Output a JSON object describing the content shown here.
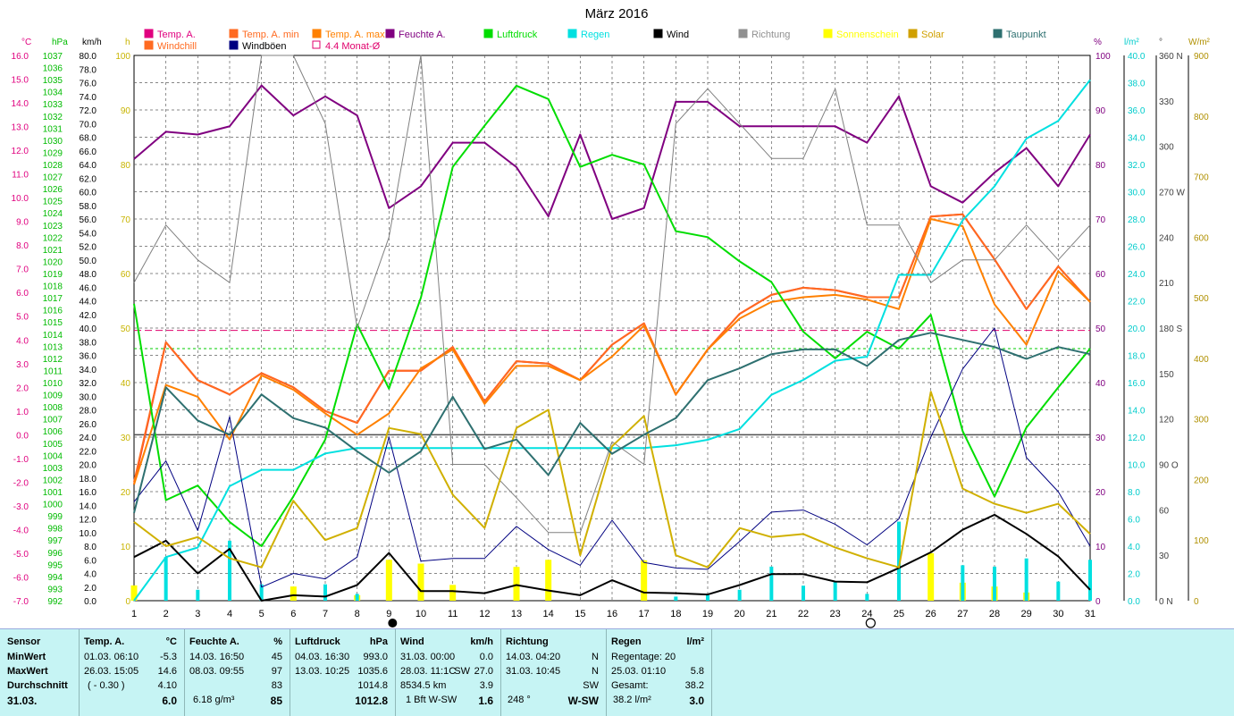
{
  "chart_data": {
    "type": "line",
    "title": "März 2016",
    "x": [
      1,
      2,
      3,
      4,
      5,
      6,
      7,
      8,
      9,
      10,
      11,
      12,
      13,
      14,
      15,
      16,
      17,
      18,
      19,
      20,
      21,
      22,
      23,
      24,
      25,
      26,
      27,
      28,
      29,
      30,
      31
    ],
    "xlim": [
      1,
      31
    ],
    "grid": true,
    "axes": {
      "temp": {
        "label": "°C",
        "color": "#e0007f",
        "min": -7,
        "max": 16,
        "ticks": [
          "16.0",
          "15.0",
          "14.0",
          "13.0",
          "12.0",
          "11.0",
          "10.0",
          "9.0",
          "8.0",
          "7.0",
          "6.0",
          "5.0",
          "4.0",
          "3.0",
          "2.0",
          "1.0",
          "0.0",
          "-1.0",
          "-2.0",
          "-3.0",
          "-4.0",
          "-5.0",
          "-6.0",
          "-7.0"
        ]
      },
      "press": {
        "label": "hPa",
        "color": "#00bb00",
        "min": 992,
        "max": 1037,
        "ticks": [
          "1037",
          "1036",
          "1035",
          "1034",
          "1033",
          "1032",
          "1031",
          "1030",
          "1029",
          "1028",
          "1027",
          "1026",
          "1025",
          "1024",
          "1023",
          "1022",
          "1021",
          "1020",
          "1019",
          "1018",
          "1017",
          "1016",
          "1015",
          "1014",
          "1013",
          "1012",
          "1011",
          "1010",
          "1009",
          "1008",
          "1007",
          "1006",
          "1005",
          "1004",
          "1003",
          "1002",
          "1001",
          "1000",
          "999",
          "998",
          "997",
          "996",
          "995",
          "994",
          "993",
          "992"
        ]
      },
      "wind": {
        "label": "km/h",
        "color": "#000000",
        "min": 0,
        "max": 80,
        "ticks": [
          "80.0",
          "78.0",
          "76.0",
          "74.0",
          "72.0",
          "70.0",
          "68.0",
          "66.0",
          "64.0",
          "62.0",
          "60.0",
          "58.0",
          "56.0",
          "54.0",
          "52.0",
          "50.0",
          "48.0",
          "46.0",
          "44.0",
          "42.0",
          "40.0",
          "38.0",
          "36.0",
          "34.0",
          "32.0",
          "30.0",
          "28.0",
          "26.0",
          "24.0",
          "22.0",
          "20.0",
          "18.0",
          "16.0",
          "14.0",
          "12.0",
          "10.0",
          "8.0",
          "6.0",
          "4.0",
          "2.0",
          "0.0"
        ]
      },
      "sun": {
        "label": "h",
        "color": "#c8b400",
        "min": 0,
        "max": 100,
        "ticks": [
          "100",
          "90",
          "80",
          "70",
          "60",
          "50",
          "40",
          "30",
          "20",
          "10",
          "0"
        ]
      },
      "hum": {
        "label": "%",
        "color": "#800080",
        "min": 0,
        "max": 100,
        "ticks": [
          "100",
          "90",
          "80",
          "70",
          "60",
          "50",
          "40",
          "30",
          "20",
          "10",
          "0"
        ]
      },
      "rain": {
        "label": "l/m²",
        "color": "#00cccc",
        "min": 0,
        "max": 40,
        "ticks": [
          "40.0",
          "38.0",
          "36.0",
          "34.0",
          "32.0",
          "30.0",
          "28.0",
          "26.0",
          "24.0",
          "22.0",
          "20.0",
          "18.0",
          "16.0",
          "14.0",
          "12.0",
          "10.0",
          "8.0",
          "6.0",
          "4.0",
          "2.0",
          "0.0"
        ]
      },
      "dir": {
        "label": "°",
        "color": "#404040",
        "min": 0,
        "max": 360,
        "ticks": [
          "360 N",
          "330",
          "300",
          "270 W",
          "240",
          "210",
          "180 S",
          "150",
          "120",
          "90 O",
          "60",
          "30",
          "0   N"
        ]
      },
      "solar": {
        "label": "W/m²",
        "color": "#b09000",
        "min": 0,
        "max": 900,
        "ticks": [
          "900",
          "800",
          "700",
          "600",
          "500",
          "400",
          "300",
          "200",
          "100",
          "0"
        ]
      }
    },
    "series": [
      {
        "name": "Temp. A.",
        "axis": "temp",
        "color": "#ff2020",
        "width": 2,
        "values": [
          -2.1,
          3.9,
          2.3,
          1.7,
          2.6,
          2.0,
          1.0,
          0.5,
          2.7,
          2.7,
          3.7,
          1.4,
          3.1,
          3.0,
          2.3,
          3.8,
          4.7,
          1.7,
          3.6,
          5.1,
          5.9,
          6.2,
          6.1,
          5.8,
          5.8,
          9.2,
          9.3,
          7.4,
          5.3,
          7.1,
          5.6
        ]
      },
      {
        "name": "Temp. A. min",
        "axis": "temp",
        "color": "#ff6a20",
        "width": 2,
        "values": [
          -2.0,
          3.9,
          2.3,
          1.7,
          2.6,
          2.0,
          1.0,
          0.5,
          2.7,
          2.7,
          3.7,
          1.4,
          3.1,
          3.0,
          2.3,
          3.8,
          4.7,
          1.7,
          3.6,
          5.1,
          5.9,
          6.2,
          6.1,
          5.8,
          5.8,
          9.2,
          9.3,
          7.4,
          5.3,
          7.1,
          5.6
        ]
      },
      {
        "name": "Temp. A. max",
        "axis": "temp",
        "color": "#ff8000",
        "width": 2,
        "values": [
          -2.1,
          2.1,
          1.6,
          -0.2,
          2.5,
          1.9,
          0.9,
          0.0,
          0.9,
          2.8,
          3.6,
          1.3,
          2.9,
          2.9,
          2.3,
          3.3,
          4.6,
          1.7,
          3.6,
          4.9,
          5.6,
          5.8,
          5.9,
          5.7,
          5.3,
          9.1,
          8.8,
          5.5,
          3.8,
          6.9,
          5.6
        ]
      },
      {
        "name": "Feuchte A.",
        "axis": "hum",
        "color": "#800080",
        "width": 2,
        "values": [
          81,
          86,
          85.5,
          87,
          94.5,
          89,
          92.5,
          89,
          72,
          76,
          84,
          84,
          79.5,
          70.5,
          85.5,
          70,
          72,
          91.5,
          91.5,
          87,
          87,
          87,
          87,
          84,
          92.5,
          76,
          73,
          78.5,
          83,
          76,
          85.5
        ]
      },
      {
        "name": "Luftdruck",
        "axis": "press",
        "color": "#00dd00",
        "width": 2,
        "values": [
          1016.5,
          1000.3,
          1001.5,
          998.5,
          996.5,
          1000.6,
          1005.3,
          1014.8,
          1009.5,
          1017.0,
          1027.8,
          1031.2,
          1034.5,
          1033.4,
          1027.8,
          1028.8,
          1028.0,
          1022.5,
          1022.0,
          1020.0,
          1018.3,
          1014.2,
          1012.0,
          1014.2,
          1012.8,
          1015.6,
          1006.0,
          1000.6,
          1006.3,
          1009.6,
          1012.8
        ]
      },
      {
        "name": "Regen",
        "axis": "rain",
        "color": "#00e0e0",
        "width": 2,
        "values": [
          0,
          3.2,
          3.9,
          8.4,
          9.6,
          9.6,
          10.8,
          11.2,
          11.2,
          11.2,
          11.2,
          11.2,
          11.2,
          11.2,
          11.2,
          11.2,
          11.2,
          11.4,
          11.8,
          12.6,
          15.1,
          16.2,
          17.6,
          17.9,
          23.9,
          23.9,
          27.9,
          30.4,
          33.9,
          35.2,
          38.2
        ]
      },
      {
        "name": "Wind",
        "axis": "wind",
        "color": "#000000",
        "width": 2,
        "values": [
          6.4,
          8.8,
          4.0,
          7.6,
          0.0,
          0.8,
          0.6,
          2.3,
          7.0,
          1.4,
          1.4,
          1.1,
          2.3,
          1.5,
          0.8,
          3.0,
          1.2,
          1.1,
          0.9,
          2.3,
          3.9,
          3.9,
          2.8,
          2.7,
          4.8,
          7.1,
          10.4,
          12.6,
          9.8,
          6.5,
          1.6
        ]
      },
      {
        "name": "Windböen",
        "axis": "wind",
        "color": "#000080",
        "width": 1,
        "values": [
          14.5,
          20.5,
          10.3,
          27.0,
          2.0,
          4.0,
          3.2,
          6.4,
          24.0,
          5.8,
          6.2,
          6.2,
          10.9,
          7.5,
          5.2,
          11.8,
          5.6,
          4.8,
          4.6,
          8.7,
          13.0,
          13.3,
          11.2,
          8.2,
          12.0,
          24.0,
          34.0,
          40.0,
          21.0,
          16.0,
          8.0
        ]
      },
      {
        "name": "Richtung",
        "axis": "dir",
        "color": "#808080",
        "width": 1,
        "values": [
          210,
          248,
          225,
          210,
          362,
          362,
          315,
          180,
          240,
          362,
          90,
          90,
          68,
          45,
          45,
          105,
          90,
          315,
          338,
          315,
          292,
          292,
          338,
          248,
          248,
          210,
          225,
          225,
          248,
          225,
          248
        ]
      },
      {
        "name": "Solar",
        "axis": "solar",
        "color": "#d0b000",
        "width": 2,
        "values": [
          130,
          90,
          105,
          70,
          55,
          165,
          100,
          120,
          285,
          275,
          175,
          120,
          285,
          315,
          75,
          255,
          305,
          75,
          55,
          120,
          105,
          110,
          88,
          70,
          55,
          345,
          185,
          160,
          145,
          160,
          110
        ]
      },
      {
        "name": "Taupunkt",
        "axis": "temp",
        "color": "#2e7070",
        "width": 2,
        "values": [
          -3.3,
          2.0,
          0.6,
          0.0,
          1.7,
          0.7,
          0.3,
          -0.7,
          -1.6,
          -0.7,
          1.6,
          -0.6,
          -0.2,
          -1.7,
          0.5,
          -0.8,
          0.0,
          0.7,
          2.3,
          2.8,
          3.4,
          3.6,
          3.6,
          2.9,
          4.0,
          4.3,
          4.0,
          3.7,
          3.2,
          3.7,
          3.4
        ]
      }
    ],
    "bars": [
      {
        "name": "Sonnenschein",
        "axis": "sun",
        "color": "#ffff00",
        "values": [
          2.8,
          0,
          0,
          0,
          0,
          2.6,
          0,
          1.0,
          7.5,
          6.8,
          2.9,
          0,
          6.2,
          7.5,
          0,
          0,
          7.4,
          0,
          0,
          0,
          0,
          0,
          0,
          0,
          0,
          8.7,
          3.3,
          2.6,
          1.5,
          0,
          0
        ]
      },
      {
        "name": "Regen",
        "axis": "rain",
        "color": "#00e0e0",
        "values": [
          0,
          3.2,
          0.8,
          4.4,
          1.2,
          0,
          1.2,
          0.5,
          0,
          0,
          0,
          0,
          0,
          0,
          0,
          0,
          0,
          0.3,
          0.4,
          0.8,
          2.5,
          1.1,
          1.4,
          0.5,
          5.8,
          0,
          2.6,
          2.5,
          3.1,
          1.4,
          3.0
        ]
      }
    ],
    "reference_lines": [
      {
        "name": "4.4 Monat-Ø",
        "axis": "temp",
        "value": 4.4,
        "color": "#e0006c",
        "dash": "8 4"
      },
      {
        "axis": "press",
        "value": 1012.8,
        "color": "#00cc00",
        "dash": "3 3"
      }
    ],
    "zero_line": {
      "axis": "temp",
      "value": 0,
      "color": "#505050"
    },
    "legend": {
      "row1": [
        {
          "name": "Temp. A.",
          "color": "#e0007f",
          "symbol": "filled"
        },
        {
          "name": "Temp. A. min",
          "color": "#ff6a20",
          "symbol": "filled"
        },
        {
          "name": "Temp. A. max",
          "color": "#ff8000",
          "symbol": "filled"
        },
        {
          "name": "Feuchte A.",
          "color": "#800080",
          "symbol": "filled"
        },
        {
          "name": "Luftdruck",
          "color": "#00dd00",
          "symbol": "filled"
        },
        {
          "name": "Regen",
          "color": "#00e0e0",
          "symbol": "filled"
        },
        {
          "name": "Wind",
          "color": "#000000",
          "symbol": "filled"
        },
        {
          "name": "Richtung",
          "color": "#909090",
          "symbol": "filled"
        },
        {
          "name": "Sonnenschein",
          "color": "#ffff00",
          "symbol": "filled"
        },
        {
          "name": "Solar",
          "color": "#d0a000",
          "symbol": "filled"
        },
        {
          "name": "Taupunkt",
          "color": "#2e7070",
          "symbol": "filled"
        }
      ],
      "row2": [
        {
          "name": "Windchill",
          "color": "#ff6a20",
          "symbol": "filled"
        },
        {
          "name": "Windböen",
          "color": "#000080",
          "symbol": "filled"
        },
        {
          "name": "4.4 Monat-Ø",
          "color": "#e0006c",
          "symbol": "outline"
        }
      ]
    },
    "moon_phases": [
      {
        "day": 9,
        "phase": "new"
      },
      {
        "day": 24,
        "phase": "full"
      }
    ]
  },
  "stats": {
    "row_labels": {
      "min": "MinWert",
      "max": "MaxWert",
      "avg": "Durchschnitt",
      "date": "31.03."
    },
    "sensor_header": "Sensor",
    "temp": {
      "title": "Temp. A.",
      "unit": "°C",
      "min_time": "01.03.  06:10",
      "min_val": "-5.3",
      "max_time": "26.03.  15:05",
      "max_val": "14.6",
      "avg_extra": "( - 0.30 )",
      "avg_val": "4.10",
      "today_val": "6.0"
    },
    "hum": {
      "title": "Feuchte A.",
      "unit": "%",
      "min_time": "14.03.  16:50",
      "min_val": "45",
      "max_time": "08.03.  09:55",
      "max_val": "97",
      "avg_val": "83",
      "today_extra": "6.18 g/m³",
      "today_val": "85"
    },
    "press": {
      "title": "Luftdruck",
      "unit": "hPa",
      "min_time": "04.03.  16:30",
      "min_val": "993.0",
      "max_time": "13.03.  10:25",
      "max_val": "1035.6",
      "avg_val": "1014.8",
      "today_val": "1012.8"
    },
    "wind": {
      "title": "Wind",
      "unit": "km/h",
      "min_time": "31.03.  00:00",
      "min_val": "0.0",
      "max_time": "28.03.  11:1C",
      "max_dir": "SW",
      "max_val": "27.0",
      "avg_extra": "8534.5 km",
      "avg_val": "3.9",
      "today_extra": "1 Bft W-SW",
      "today_val": "1.6"
    },
    "dir": {
      "title": "Richtung",
      "min_time": "14.03.  04:20",
      "min_val": "N",
      "max_time": "31.03.  10:45",
      "max_val": "N",
      "avg_val": "SW",
      "today_deg": "248 °",
      "today_val": "W-SW"
    },
    "rain": {
      "title": "Regen",
      "unit": "l/m²",
      "days_label": "Regentage: 20",
      "max_time": "25.03.  01:10",
      "max_val": "5.8",
      "total_label": "Gesamt:",
      "total_val": "38.2",
      "today_extra": "38.2 l/m²",
      "today_val": "3.0"
    }
  }
}
